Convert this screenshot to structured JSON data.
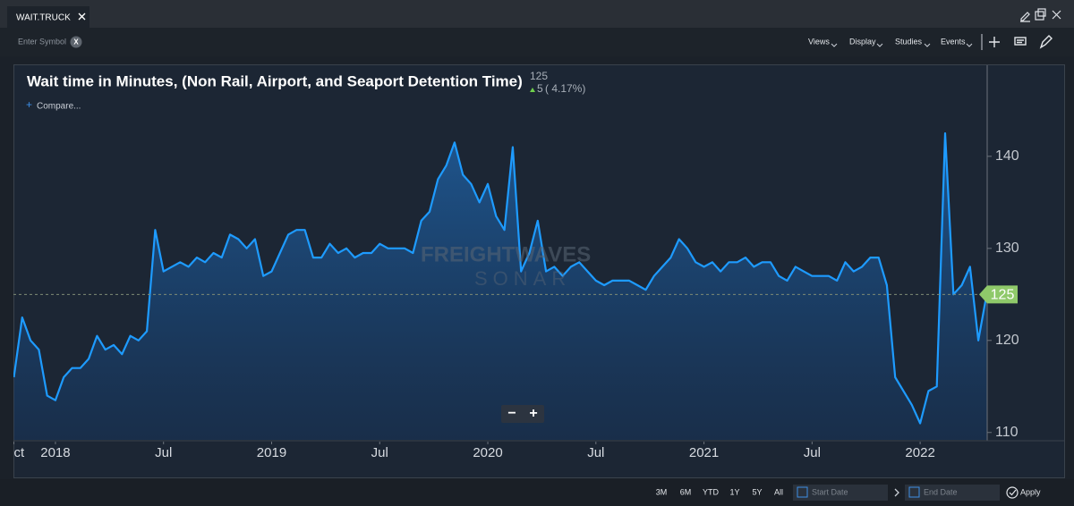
{
  "tab": {
    "title": "WAIT.TRUCK"
  },
  "toolbar": {
    "symbol_placeholder": "Enter Symbol",
    "clear": "X",
    "menus": [
      "Views",
      "Display",
      "Studies",
      "Events"
    ]
  },
  "compare": "Compare...",
  "change": "5",
  "change_pct": "( 4.17%)",
  "watermark": [
    "FREIGHTWAVES",
    "SONAR"
  ],
  "zoom": [
    "−",
    "+"
  ],
  "footer": {
    "ranges": [
      "3M",
      "6M",
      "YTD",
      "1Y",
      "5Y",
      "All"
    ],
    "start": "Start Date",
    "end": "End Date",
    "apply": "Apply"
  },
  "chart_data": {
    "type": "area",
    "title": "Wait time in Minutes, (Non Rail, Airport, and Seaport Detention Time)",
    "color": "#1e9bff",
    "ylim": [
      109.2,
      149.7
    ],
    "yticks": [
      110,
      120,
      130,
      140
    ],
    "categories": [
      "Oct",
      null,
      null,
      null,
      null,
      "2018",
      null,
      null,
      null,
      null,
      null,
      null,
      null,
      null,
      null,
      null,
      null,
      null,
      "Jul",
      null,
      null,
      null,
      null,
      null,
      null,
      null,
      null,
      null,
      null,
      null,
      null,
      "2019",
      null,
      null,
      null,
      null,
      null,
      null,
      null,
      null,
      null,
      null,
      null,
      null,
      "Jul",
      null,
      null,
      null,
      null,
      null,
      null,
      null,
      null,
      null,
      null,
      null,
      null,
      "2020",
      null,
      null,
      null,
      null,
      null,
      null,
      null,
      null,
      null,
      null,
      null,
      null,
      "Jul",
      null,
      null,
      null,
      null,
      null,
      null,
      null,
      null,
      null,
      null,
      null,
      null,
      "2021",
      null,
      null,
      null,
      null,
      null,
      null,
      null,
      null,
      null,
      null,
      null,
      null,
      "Jul",
      null,
      null,
      null,
      null,
      null,
      null,
      null,
      null,
      null,
      null,
      null,
      null,
      "2022",
      null,
      null,
      null,
      null,
      null,
      null,
      null,
      null
    ],
    "values": [
      116,
      122.5,
      120,
      119,
      114,
      113.5,
      116,
      117,
      117,
      118,
      120.5,
      119,
      119.5,
      118.5,
      120.5,
      120,
      121,
      132,
      127.5,
      128,
      128.5,
      128,
      129,
      128.5,
      129.5,
      129,
      131.5,
      131,
      130,
      131,
      127,
      127.5,
      129.5,
      131.5,
      132,
      132,
      129,
      129,
      130.5,
      129.5,
      130,
      129,
      129.5,
      129.5,
      130.5,
      130,
      130,
      130,
      129.5,
      133,
      134,
      137.5,
      139,
      141.5,
      138,
      137,
      135,
      137,
      133.5,
      132,
      141,
      127.5,
      129.5,
      133,
      127.5,
      128,
      127,
      128,
      128.5,
      127.5,
      126.5,
      126,
      126.5,
      126.5,
      126.5,
      126,
      125.5,
      127,
      128,
      129,
      131,
      130,
      128.5,
      128,
      128.5,
      127.5,
      128.5,
      128.5,
      129,
      128,
      128.5,
      128.5,
      127,
      126.5,
      128,
      127.5,
      127,
      127,
      127,
      126.5,
      128.5,
      127.5,
      128,
      129,
      129,
      126,
      116,
      114.5,
      113,
      111,
      114.5,
      115,
      142.5,
      125,
      126,
      128,
      120,
      125
    ],
    "grid": false
  }
}
